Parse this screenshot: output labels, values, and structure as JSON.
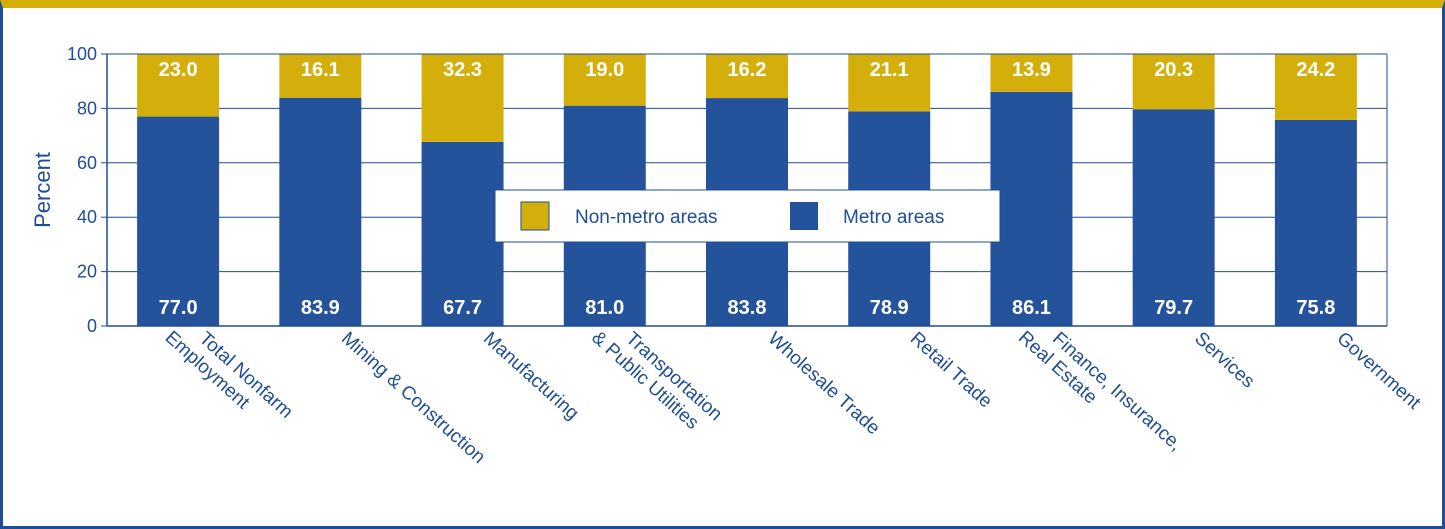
{
  "chart_data": {
    "type": "bar",
    "stacked": true,
    "ylabel": "Percent",
    "ylim": [
      0,
      100
    ],
    "yticks": [
      0,
      20,
      40,
      60,
      80,
      100
    ],
    "grid": true,
    "legend_position": "center",
    "categories": [
      [
        "Total Nonfarm",
        "Employment"
      ],
      [
        "Mining & Construction"
      ],
      [
        "Manufacturing"
      ],
      [
        "Transportation",
        "& Public Utilities"
      ],
      [
        "Wholesale Trade"
      ],
      [
        "Retail Trade"
      ],
      [
        "Finance, Insurance,",
        "Real Estate"
      ],
      [
        "Services"
      ],
      [
        "Government"
      ]
    ],
    "series": [
      {
        "name": "Metro areas",
        "color": "#24539C",
        "values": [
          77.0,
          83.9,
          67.7,
          81.0,
          83.8,
          78.9,
          86.1,
          79.7,
          75.8
        ],
        "labels": [
          "77.0",
          "83.9",
          "67.7",
          "81.0",
          "83.8",
          "78.9",
          "86.1",
          "79.7",
          "75.8"
        ]
      },
      {
        "name": "Non-metro areas",
        "color": "#D4AF0C",
        "values": [
          23.0,
          16.1,
          32.3,
          19.0,
          16.2,
          21.1,
          13.9,
          20.3,
          24.2
        ],
        "labels": [
          "23.0",
          "16.1",
          "32.3",
          "19.0",
          "16.2",
          "21.1",
          "",
          "20.3",
          "24.2"
        ]
      }
    ],
    "extra_labels": [
      {
        "category_index": 6,
        "text": "13.9"
      }
    ],
    "colors": {
      "axis": "#1F4E96",
      "grid": "#1F4E96",
      "text": "#1F4E96",
      "frame_top": "#D4AF0C"
    }
  }
}
